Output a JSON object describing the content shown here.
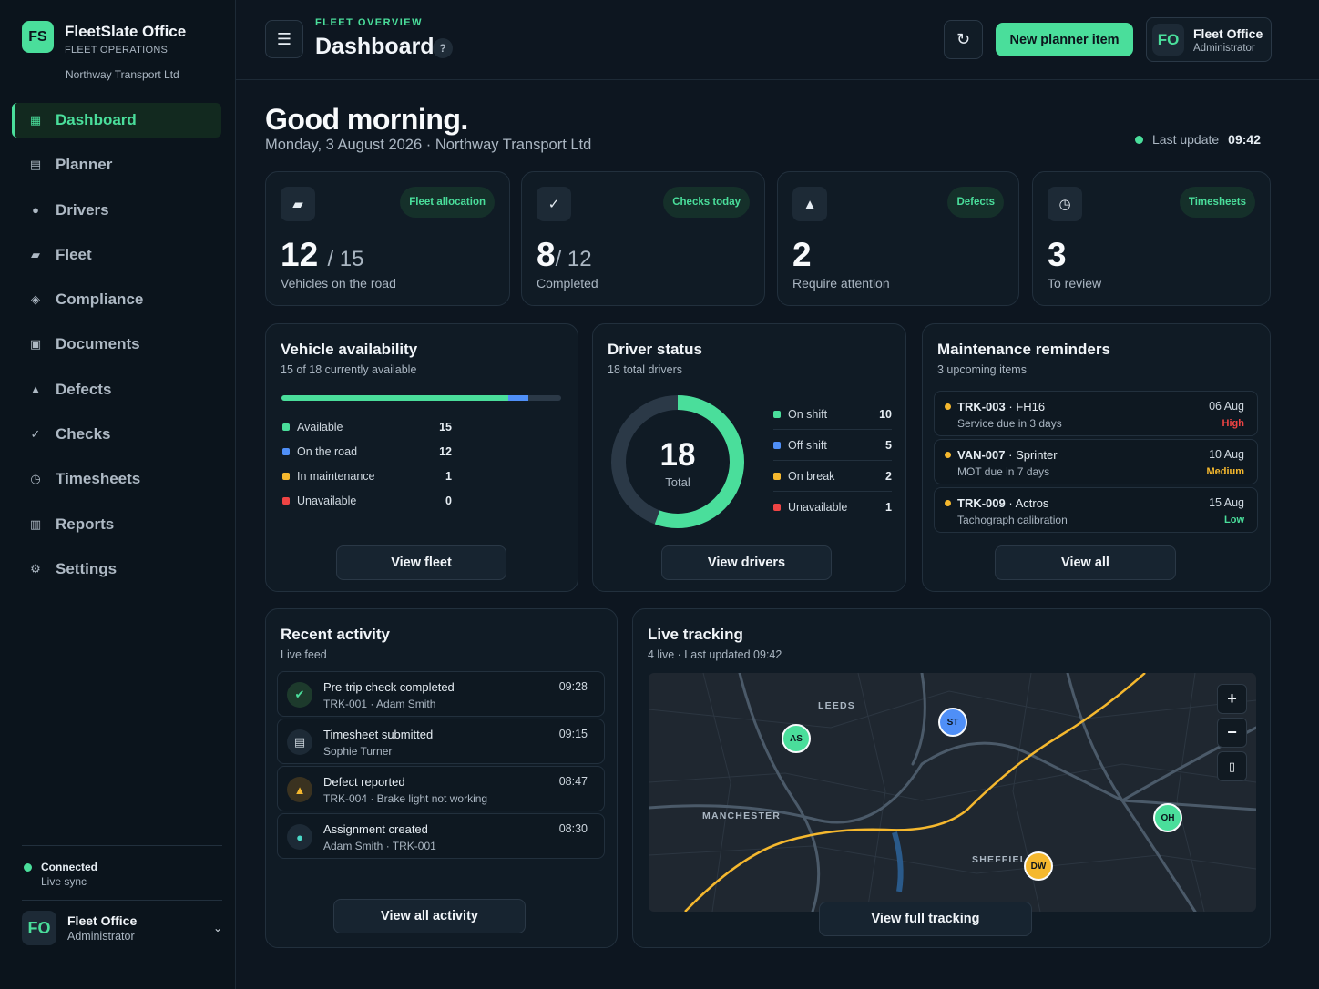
{
  "brand": {
    "logo": "FS",
    "title": "FleetSlate Office",
    "subtitle": "FLEET OPERATIONS",
    "org": "Northway Transport Ltd"
  },
  "nav": [
    {
      "label": "Dashboard",
      "icon": "grid-icon",
      "active": true
    },
    {
      "label": "Planner",
      "icon": "planner-icon"
    },
    {
      "label": "Drivers",
      "icon": "person-icon"
    },
    {
      "label": "Fleet",
      "icon": "truck-icon"
    },
    {
      "label": "Compliance",
      "icon": "diamond-icon"
    },
    {
      "label": "Documents",
      "icon": "document-icon"
    },
    {
      "label": "Defects",
      "icon": "warning-icon"
    },
    {
      "label": "Checks",
      "icon": "check-icon"
    },
    {
      "label": "Timesheets",
      "icon": "clock-icon"
    },
    {
      "label": "Reports",
      "icon": "chart-icon"
    },
    {
      "label": "Settings",
      "icon": "gear-icon"
    }
  ],
  "connection": {
    "status": "Connected",
    "detail": "Live sync"
  },
  "user": {
    "initials": "FO",
    "name": "Fleet Office",
    "role": "Administrator"
  },
  "header": {
    "eyebrow": "FLEET OVERVIEW",
    "title": "Dashboard",
    "help": "?",
    "primary_action": "New planner item"
  },
  "greeting": {
    "title": "Good morning.",
    "date_line": "Monday, 3 August 2026 · Northway Transport Ltd",
    "last_update_label": "Last update",
    "last_update_time": "09:42"
  },
  "stats": [
    {
      "pill": "Fleet allocation",
      "value": "12",
      "total": "/ 15",
      "label": "Vehicles on the road",
      "icon": "truck-icon"
    },
    {
      "pill": "Checks today",
      "value": "8",
      "total": "/ 12",
      "label": "Completed",
      "icon": "check-icon"
    },
    {
      "pill": "Defects",
      "value": "2",
      "total": "",
      "label": "Require attention",
      "icon": "warning-icon"
    },
    {
      "pill": "Timesheets",
      "value": "3",
      "total": "",
      "label": "To review",
      "icon": "clock-icon"
    }
  ],
  "vehicle_availability": {
    "title": "Vehicle availability",
    "subtitle": "15 of 18 currently available",
    "available_fraction": 0.833,
    "on_road_fraction": 0.667,
    "rows": [
      {
        "label": "Available",
        "value": "15",
        "color": "#4ade9b"
      },
      {
        "label": "On the road",
        "value": "12",
        "color": "#4f8ff7"
      },
      {
        "label": "In maintenance",
        "value": "1",
        "color": "#f5b82e"
      },
      {
        "label": "Unavailable",
        "value": "0",
        "color": "#ef4444"
      }
    ],
    "button": "View fleet"
  },
  "driver_status": {
    "title": "Driver status",
    "subtitle": "18 total drivers",
    "total": "18",
    "total_label": "Total",
    "rows": [
      {
        "label": "On shift",
        "value": "10",
        "color": "#4ade9b"
      },
      {
        "label": "Off shift",
        "value": "5",
        "color": "#4f8ff7"
      },
      {
        "label": "On break",
        "value": "2",
        "color": "#f5b82e"
      },
      {
        "label": "Unavailable",
        "value": "1",
        "color": "#ef4444"
      }
    ],
    "donut_fraction": 0.556,
    "button": "View drivers"
  },
  "maintenance": {
    "title": "Maintenance reminders",
    "subtitle": "3 upcoming items",
    "items": [
      {
        "id": "TRK-003",
        "model": "FH16",
        "detail": "Service due in 3 days",
        "date": "06 Aug",
        "priority": "High",
        "priority_color": "#ef4444"
      },
      {
        "id": "VAN-007",
        "model": "Sprinter",
        "detail": "MOT due in 7 days",
        "date": "10 Aug",
        "priority": "Medium",
        "priority_color": "#f5b82e"
      },
      {
        "id": "TRK-009",
        "model": "Actros",
        "detail": "Tachograph calibration",
        "date": "15 Aug",
        "priority": "Low",
        "priority_color": "#4ade9b"
      }
    ],
    "button": "View all"
  },
  "activity": {
    "title": "Recent activity",
    "subtitle": "Live feed",
    "items": [
      {
        "title": "Pre-trip check completed",
        "detail": "TRK-001 · Adam Smith",
        "time": "09:28",
        "icon": "check-circle-icon"
      },
      {
        "title": "Timesheet submitted",
        "detail": "Sophie Turner",
        "time": "09:15",
        "icon": "document-icon"
      },
      {
        "title": "Defect reported",
        "detail": "TRK-004 · Brake light not working",
        "time": "08:47",
        "icon": "warning-icon"
      },
      {
        "title": "Assignment created",
        "detail": "Adam Smith · TRK-001",
        "time": "08:30",
        "icon": "person-icon"
      }
    ],
    "button": "View all activity"
  },
  "tracking": {
    "title": "Live tracking",
    "subtitle": "4 live · Last updated 09:42",
    "labels": [
      "LEEDS",
      "MANCHESTER",
      "SHEFFIELD"
    ],
    "markers": [
      {
        "initials": "AS",
        "color": "#4ade9b"
      },
      {
        "initials": "ST",
        "color": "#4f8ff7"
      },
      {
        "initials": "OH",
        "color": "#4ade9b"
      },
      {
        "initials": "DW",
        "color": "#f5b82e"
      }
    ],
    "zoom_in": "+",
    "zoom_out": "−",
    "button": "View full tracking"
  }
}
